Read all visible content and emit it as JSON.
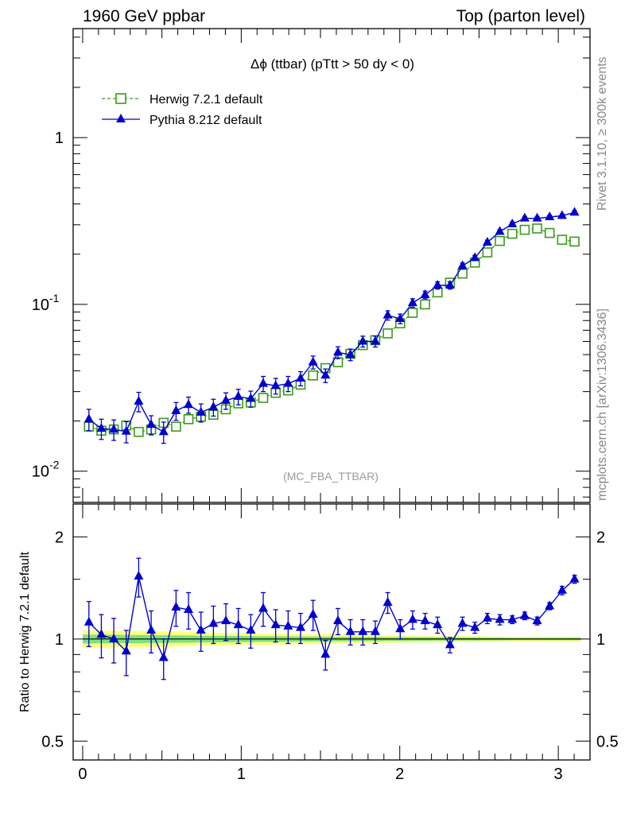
{
  "header": {
    "left": "1960 GeV ppbar",
    "right": "Top (parton level)"
  },
  "side_labels": {
    "rivet": "Rivet 3.1.10, ≥ 300k events",
    "mcplots": "mcplots.cern.ch [arXiv:1306.3436]"
  },
  "plot_title": "Δϕ (ttbar) (pTtt > 50 dy < 0)",
  "watermark": "(MC_FBA_TTBAR)",
  "ratio_ylabel": "Ratio to Herwig 7.2.1 default",
  "colors": {
    "herwig": "#3a9a1a",
    "pythia": "#0000cc",
    "band_yellow": "#ffff80",
    "band_green": "#7fe07f"
  },
  "chart_data": [
    {
      "type": "line",
      "panel": "main",
      "yscale": "log",
      "xlim": [
        -0.06,
        3.2
      ],
      "ylim": [
        0.0065,
        4.5
      ],
      "ytick_labels": [
        "10^-2",
        "10^-1",
        "1"
      ],
      "xtick_labels": [
        "0",
        "1",
        "2",
        "3"
      ],
      "legend_position": "top-left",
      "x": [
        0.0393,
        0.1178,
        0.1963,
        0.2749,
        0.3534,
        0.432,
        0.5105,
        0.589,
        0.6676,
        0.7461,
        0.8247,
        0.9032,
        0.9817,
        1.0603,
        1.1388,
        1.2174,
        1.2959,
        1.3744,
        1.453,
        1.5315,
        1.6101,
        1.6886,
        1.7671,
        1.8457,
        1.9242,
        2.0028,
        2.0813,
        2.1598,
        2.2384,
        2.3169,
        2.3955,
        2.474,
        2.5525,
        2.6311,
        2.7096,
        2.7882,
        2.8667,
        2.9452,
        3.0238,
        3.1023
      ],
      "series": [
        {
          "name": "Herwig 7.2.1 default",
          "style": "dashed-open-square",
          "values": [
            0.0185,
            0.0175,
            0.0178,
            0.0188,
            0.0172,
            0.0178,
            0.0195,
            0.0185,
            0.0205,
            0.0212,
            0.0218,
            0.0235,
            0.0255,
            0.0258,
            0.0275,
            0.0295,
            0.0305,
            0.033,
            0.0375,
            0.0415,
            0.045,
            0.0505,
            0.057,
            0.061,
            0.067,
            0.077,
            0.089,
            0.1,
            0.118,
            0.135,
            0.153,
            0.178,
            0.205,
            0.24,
            0.265,
            0.28,
            0.285,
            0.268,
            0.244,
            0.238
          ]
        },
        {
          "name": "Pythia 8.212 default",
          "style": "solid-filled-triangle",
          "values": [
            0.0205,
            0.018,
            0.0178,
            0.0173,
            0.0262,
            0.019,
            0.0172,
            0.023,
            0.025,
            0.0225,
            0.0242,
            0.0265,
            0.028,
            0.0272,
            0.0335,
            0.0325,
            0.0335,
            0.036,
            0.045,
            0.0375,
            0.0515,
            0.05,
            0.06,
            0.06,
            0.086,
            0.082,
            0.102,
            0.114,
            0.13,
            0.13,
            0.17,
            0.19,
            0.235,
            0.273,
            0.303,
            0.328,
            0.328,
            0.334,
            0.34,
            0.356
          ],
          "errors": [
            0.003,
            0.0025,
            0.0025,
            0.0025,
            0.0035,
            0.0025,
            0.0025,
            0.0028,
            0.0028,
            0.0028,
            0.0028,
            0.003,
            0.003,
            0.003,
            0.0035,
            0.0035,
            0.0035,
            0.0035,
            0.004,
            0.0035,
            0.0042,
            0.004,
            0.0045,
            0.0045,
            0.0055,
            0.0055,
            0.006,
            0.006,
            0.0065,
            0.0065,
            0.007,
            0.007,
            0.0075,
            0.008,
            0.0085,
            0.0085,
            0.0085,
            0.0085,
            0.0085,
            0.0085
          ]
        }
      ]
    },
    {
      "type": "line",
      "panel": "ratio",
      "yscale": "log",
      "ylim": [
        0.44,
        2.5
      ],
      "ytick_labels": [
        "0.5",
        "1",
        "2"
      ],
      "xtick_labels": [
        "0",
        "1",
        "2",
        "3"
      ],
      "ylabel": "Ratio to Herwig 7.2.1 default",
      "x": [
        0.0393,
        0.1178,
        0.1963,
        0.2749,
        0.3534,
        0.432,
        0.5105,
        0.589,
        0.6676,
        0.7461,
        0.8247,
        0.9032,
        0.9817,
        1.0603,
        1.1388,
        1.2174,
        1.2959,
        1.3744,
        1.453,
        1.5315,
        1.6101,
        1.6886,
        1.7671,
        1.8457,
        1.9242,
        2.0028,
        2.0813,
        2.1598,
        2.2384,
        2.3169,
        2.3955,
        2.474,
        2.5525,
        2.6311,
        2.7096,
        2.7882,
        2.8667,
        2.9452,
        3.0238,
        3.1023
      ],
      "band_yellow": [
        0.06,
        0.058,
        0.058,
        0.056,
        0.056,
        0.054,
        0.052,
        0.05,
        0.048,
        0.046,
        0.045,
        0.044,
        0.042,
        0.04,
        0.039,
        0.038,
        0.036,
        0.035,
        0.034,
        0.033,
        0.031,
        0.03,
        0.029,
        0.028,
        0.027,
        0.025,
        0.024,
        0.023,
        0.022,
        0.021,
        0.02,
        0.019,
        0.018,
        0.017,
        0.016,
        0.016,
        0.016,
        0.016,
        0.016,
        0.016
      ],
      "band_green": [
        0.03,
        0.029,
        0.029,
        0.028,
        0.028,
        0.027,
        0.026,
        0.025,
        0.024,
        0.023,
        0.022,
        0.022,
        0.021,
        0.02,
        0.019,
        0.019,
        0.018,
        0.017,
        0.017,
        0.016,
        0.015,
        0.015,
        0.014,
        0.014,
        0.013,
        0.013,
        0.012,
        0.012,
        0.011,
        0.011,
        0.01,
        0.01,
        0.009,
        0.009,
        0.008,
        0.008,
        0.008,
        0.008,
        0.008,
        0.008
      ],
      "series": [
        {
          "name": "Herwig 7.2.1 default",
          "values": [
            1,
            1,
            1,
            1,
            1,
            1,
            1,
            1,
            1,
            1,
            1,
            1,
            1,
            1,
            1,
            1,
            1,
            1,
            1,
            1,
            1,
            1,
            1,
            1,
            1,
            1,
            1,
            1,
            1,
            1,
            1,
            1,
            1,
            1,
            1,
            1,
            1,
            1,
            1,
            1
          ]
        },
        {
          "name": "Pythia 8.212 default",
          "values": [
            1.12,
            1.03,
            1.0,
            0.92,
            1.53,
            1.06,
            0.88,
            1.24,
            1.22,
            1.06,
            1.11,
            1.13,
            1.1,
            1.06,
            1.23,
            1.1,
            1.09,
            1.08,
            1.18,
            0.9,
            1.13,
            1.05,
            1.05,
            1.05,
            1.28,
            1.07,
            1.14,
            1.13,
            1.1,
            0.96,
            1.11,
            1.08,
            1.15,
            1.14,
            1.14,
            1.17,
            1.13,
            1.25,
            1.39,
            1.5
          ],
          "errors": [
            0.17,
            0.15,
            0.15,
            0.14,
            0.2,
            0.15,
            0.12,
            0.15,
            0.15,
            0.14,
            0.14,
            0.14,
            0.13,
            0.12,
            0.14,
            0.12,
            0.12,
            0.11,
            0.12,
            0.09,
            0.1,
            0.09,
            0.09,
            0.08,
            0.09,
            0.07,
            0.07,
            0.06,
            0.06,
            0.05,
            0.05,
            0.04,
            0.04,
            0.04,
            0.03,
            0.03,
            0.03,
            0.03,
            0.04,
            0.04
          ]
        }
      ]
    }
  ]
}
